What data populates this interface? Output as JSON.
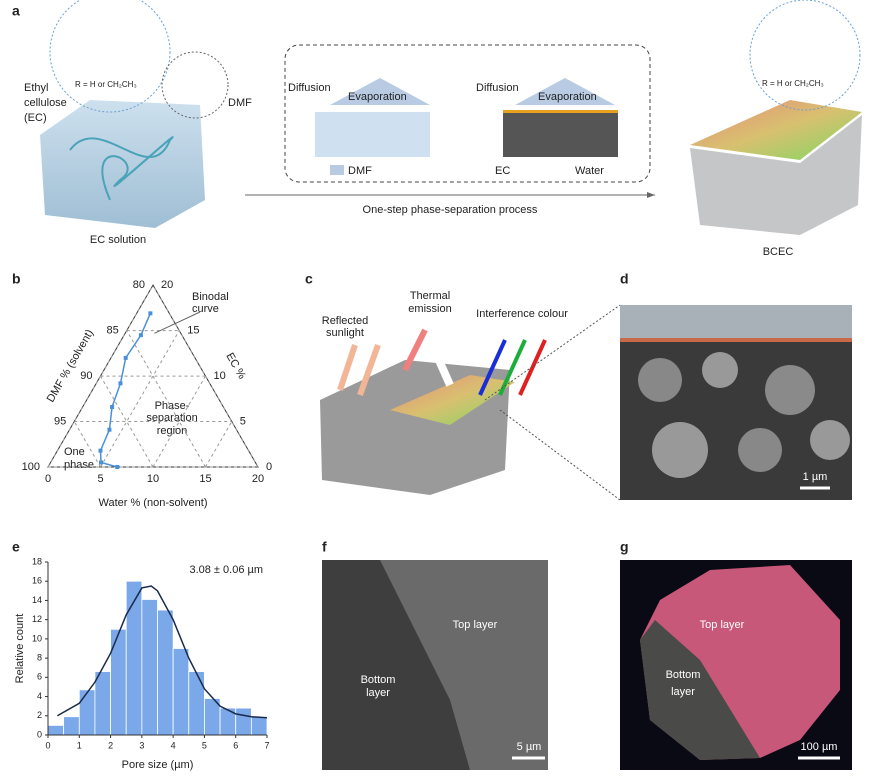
{
  "panels": {
    "a": {
      "label": "a",
      "ec_name": [
        "Ethyl",
        "cellulose",
        "(EC)"
      ],
      "dmf": "DMF",
      "r_group": "R = H or CH₂CH₃",
      "ec_solution": "EC solution",
      "diffusion": [
        "Diffusion",
        "Diffusion"
      ],
      "evaporation": [
        "Evaporation",
        "Evaporation"
      ],
      "legend": [
        "DMF",
        "EC",
        "Water"
      ],
      "process": "One-step phase-separation process",
      "product": "BCEC",
      "r_group_product": "R = H or CH₂CH₃"
    },
    "b": {
      "label": "b",
      "binodal": [
        "Binodal",
        "curve"
      ],
      "region": [
        "Phase-",
        "separation",
        "region"
      ],
      "one_phase": [
        "One",
        "phase"
      ]
    },
    "c": {
      "label": "c",
      "sunlight": [
        "Reflected",
        "sunlight"
      ],
      "thermal": [
        "Thermal",
        "emission"
      ],
      "interference": "Interference colour"
    },
    "d": {
      "label": "d",
      "scale": "1 µm"
    },
    "e": {
      "label": "e"
    },
    "f": {
      "label": "f",
      "top": "Top layer",
      "bottom": [
        "Bottom",
        "layer"
      ],
      "scale": "5 µm"
    },
    "g": {
      "label": "g",
      "top": "Top layer",
      "bottom": [
        "Bottom",
        "layer"
      ],
      "scale": "100 µm"
    }
  },
  "chart_data": [
    {
      "type": "ternary",
      "water_label": "Water % (non-solvent)",
      "dmf_label": "DMF % (solvent)",
      "ec_label": "EC %",
      "water_lim": [
        0,
        20
      ],
      "dmf_lim": [
        80,
        100
      ],
      "ec_lim": [
        0,
        20
      ],
      "water_ticks": [
        0,
        5,
        10,
        15,
        20
      ],
      "dmf_ticks": [
        80,
        85,
        90,
        95,
        100
      ],
      "ec_ticks": [
        0,
        5,
        10,
        15,
        20
      ],
      "color": "#4a90d9",
      "water": [
        6.6,
        4.8,
        4.1,
        3.8,
        2.8,
        2.3,
        1.4,
        1.6,
        1.3
      ],
      "ec": [
        0,
        0.5,
        1.8,
        4.1,
        6.6,
        9.2,
        12,
        14.5,
        16.9
      ]
    },
    {
      "type": "histogram",
      "ylabel": "Relative count",
      "xlabel": "Pore size (µm)",
      "annotation": "3.08 ± 0.06 µm",
      "color": "#7aa8e8",
      "bins": [
        0,
        0.5,
        1,
        1.5,
        2,
        2.5,
        3,
        3.5,
        4,
        4.5,
        5,
        5.5,
        6,
        6.5,
        7
      ],
      "values": [
        1,
        1.9,
        4.7,
        6.6,
        11,
        16,
        14.1,
        13,
        9,
        6.6,
        3.8,
        2.8,
        2.8,
        1.9
      ],
      "fit": {
        "x": [
          0.3,
          1,
          1.5,
          2,
          2.5,
          3,
          3.3,
          3.5,
          4,
          4.5,
          5,
          5.5,
          6,
          6.5,
          7
        ],
        "y": [
          2,
          3.3,
          5.5,
          8.5,
          12.5,
          15.3,
          15.5,
          15,
          12,
          8,
          4.8,
          3,
          2.2,
          1.9,
          1.8
        ]
      },
      "xlim": [
        0,
        7
      ],
      "ylim": [
        0,
        18
      ],
      "xticks": [
        0,
        1,
        2,
        3,
        4,
        5,
        6,
        7
      ],
      "yticks": [
        0,
        2,
        4,
        6,
        8,
        10,
        12,
        14,
        16,
        18
      ]
    }
  ]
}
